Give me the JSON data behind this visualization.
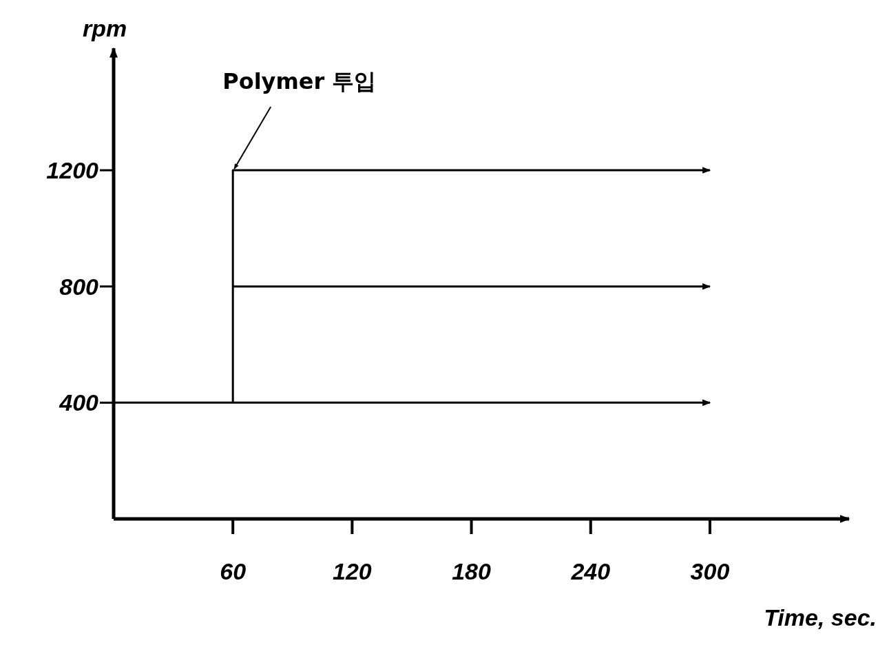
{
  "chart_data": {
    "type": "line",
    "xlabel": "Time, sec.",
    "ylabel": "rpm",
    "xlim": [
      0,
      370
    ],
    "ylim": [
      0,
      1620
    ],
    "xticks": [
      60,
      120,
      180,
      240,
      300
    ],
    "yticks": [
      400,
      800,
      1200
    ],
    "series": [
      {
        "color": "#000000",
        "x": [
          0,
          300
        ],
        "values": [
          400,
          400
        ]
      },
      {
        "color": "#000000",
        "x": [
          60,
          60,
          300
        ],
        "values": [
          400,
          1200,
          1200
        ]
      },
      {
        "color": "#000000",
        "x": [
          60,
          300
        ],
        "values": [
          800,
          800
        ]
      }
    ],
    "annotations": [
      {
        "text": "Polymer 투입",
        "x": 60,
        "y": 1200
      }
    ],
    "line_style": "solid",
    "marker": "none",
    "grid": false
  }
}
